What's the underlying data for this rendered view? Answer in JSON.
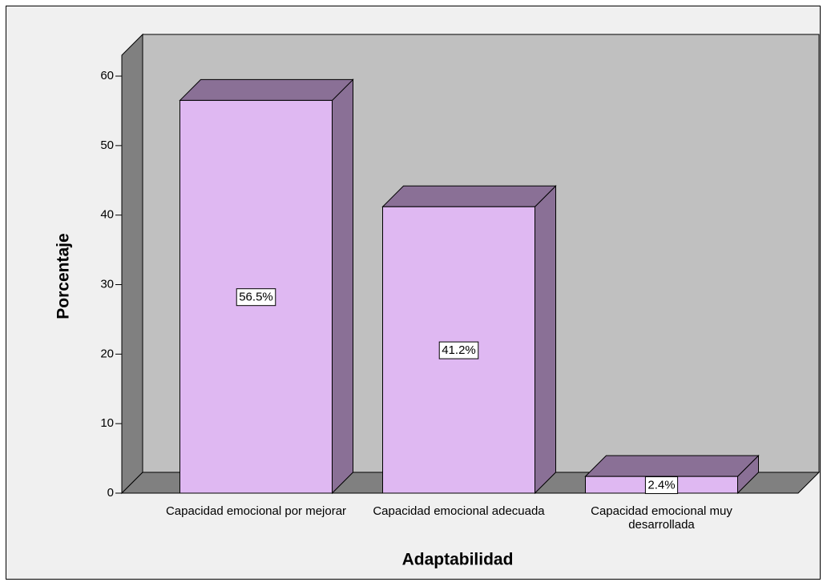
{
  "chart_data": {
    "type": "bar3d",
    "x_label": "Adaptabilidad",
    "y_label": "Porcentaje",
    "categories": [
      "Capacidad emocional por mejorar",
      "Capacidad emocional adecuada",
      "Capacidad emocional muy desarrollada"
    ],
    "values": [
      56.5,
      41.2,
      2.4
    ],
    "value_labels": [
      "56.5%",
      "41.2%",
      "2.4%"
    ],
    "color": "#dfb8f2",
    "ylim": [
      0,
      63
    ],
    "yticks": [
      0,
      10,
      20,
      30,
      40,
      50,
      60
    ]
  }
}
